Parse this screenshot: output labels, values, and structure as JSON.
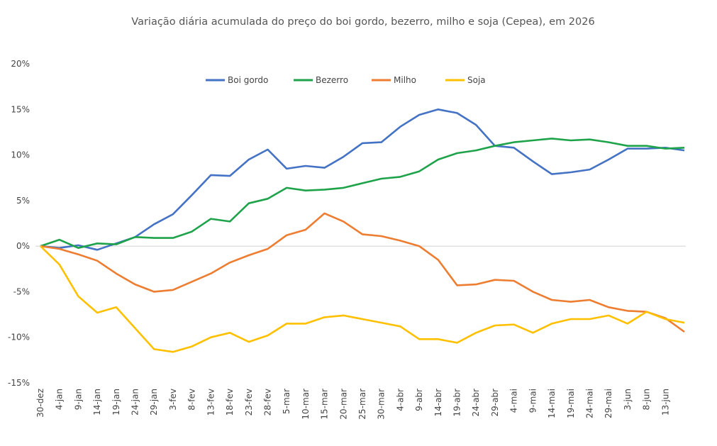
{
  "chart_data": {
    "type": "line",
    "title": "Variação diária acumulada do preço do boi gordo, bezerro, milho e soja (Cepea), em 2026",
    "categories": [
      "30-dez",
      "4-jan",
      "9-jan",
      "14-jan",
      "19-jan",
      "24-jan",
      "29-jan",
      "3-fev",
      "8-fev",
      "13-fev",
      "18-fev",
      "23-fev",
      "28-fev",
      "5-mar",
      "10-mar",
      "15-mar",
      "20-mar",
      "25-mar",
      "30-mar",
      "4-abr",
      "9-abr",
      "14-abr",
      "19-abr",
      "24-abr",
      "29-abr",
      "4-mai",
      "9-mai",
      "14-mai",
      "19-mai",
      "24-mai",
      "29-mai",
      "3-jun",
      "8-jun",
      "13-jun",
      null
    ],
    "series": [
      {
        "name": "Boi gordo",
        "color": "#4472c4",
        "values": [
          0,
          -0.2,
          0.1,
          -0.4,
          0.3,
          1.0,
          2.4,
          3.5,
          5.6,
          7.8,
          7.7,
          9.5,
          10.6,
          8.5,
          8.8,
          8.6,
          9.8,
          11.3,
          11.4,
          13.1,
          14.4,
          15.0,
          14.6,
          13.3,
          11.0,
          10.8,
          9.3,
          7.9,
          8.1,
          8.4,
          9.5,
          10.7,
          10.7,
          10.8,
          10.5
        ]
      },
      {
        "name": "Bezerro",
        "color": "#1fa34a",
        "values": [
          0,
          0.7,
          -0.2,
          0.3,
          0.2,
          1.0,
          0.9,
          0.9,
          1.6,
          3.0,
          2.7,
          4.7,
          5.2,
          6.4,
          6.1,
          6.2,
          6.4,
          6.9,
          7.4,
          7.6,
          8.2,
          9.5,
          10.2,
          10.5,
          11.0,
          11.4,
          11.6,
          11.8,
          11.6,
          11.7,
          11.4,
          11.0,
          11.0,
          10.7,
          10.8
        ]
      },
      {
        "name": "Milho",
        "color": "#ed7d31",
        "values": [
          0,
          -0.3,
          -0.9,
          -1.6,
          -3.0,
          -4.2,
          -5.0,
          -4.8,
          -3.9,
          -3.0,
          -1.8,
          -1.0,
          -0.3,
          1.2,
          1.8,
          3.6,
          2.7,
          1.3,
          1.1,
          0.6,
          0.0,
          -1.5,
          -4.3,
          -4.2,
          -3.7,
          -3.8,
          -5.0,
          -5.9,
          -6.1,
          -5.9,
          -6.7,
          -7.1,
          -7.2,
          -7.9,
          -9.4
        ]
      },
      {
        "name": "Soja",
        "color": "#ffc000",
        "values": [
          0,
          -2.0,
          -5.5,
          -7.3,
          -6.7,
          -9.0,
          -11.3,
          -11.6,
          -11.0,
          -10.0,
          -9.5,
          -10.5,
          -9.8,
          -8.5,
          -8.5,
          -7.8,
          -7.6,
          -8.0,
          -8.4,
          -8.8,
          -10.2,
          -10.2,
          -10.6,
          -9.5,
          -8.7,
          -8.6,
          -9.5,
          -8.5,
          -8.0,
          -8.0,
          -7.6,
          -8.5,
          -7.2,
          -8.0,
          -8.4
        ]
      }
    ],
    "ylim": [
      -15,
      20
    ],
    "yticks": [
      {
        "value": -15,
        "label": "-15%"
      },
      {
        "value": -10,
        "label": "-10%"
      },
      {
        "value": -5,
        "label": "-5%"
      },
      {
        "value": 0,
        "label": "0%"
      },
      {
        "value": 5,
        "label": "5%"
      },
      {
        "value": 10,
        "label": "10%"
      },
      {
        "value": 15,
        "label": "15%"
      },
      {
        "value": 20,
        "label": "20%"
      }
    ],
    "legend": "top"
  }
}
